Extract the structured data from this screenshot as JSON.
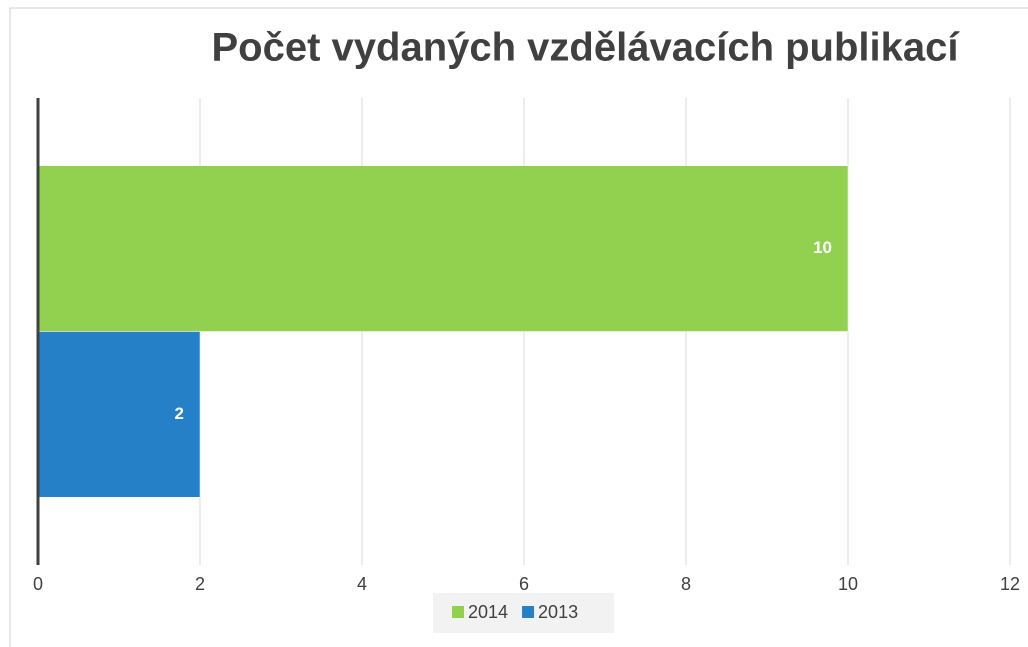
{
  "chart_data": {
    "type": "bar",
    "orientation": "horizontal",
    "title": "Počet vydaných vzdělávacích publikací",
    "categories": [
      null
    ],
    "series": [
      {
        "name": "2014",
        "color": "#92d050",
        "values": [
          10
        ]
      },
      {
        "name": "2013",
        "color": "#2580c8",
        "values": [
          2
        ]
      }
    ],
    "xlim": [
      0,
      12
    ],
    "xticks": [
      0,
      2,
      4,
      6,
      8,
      10,
      12
    ],
    "grid": true,
    "legend": "bottom"
  }
}
